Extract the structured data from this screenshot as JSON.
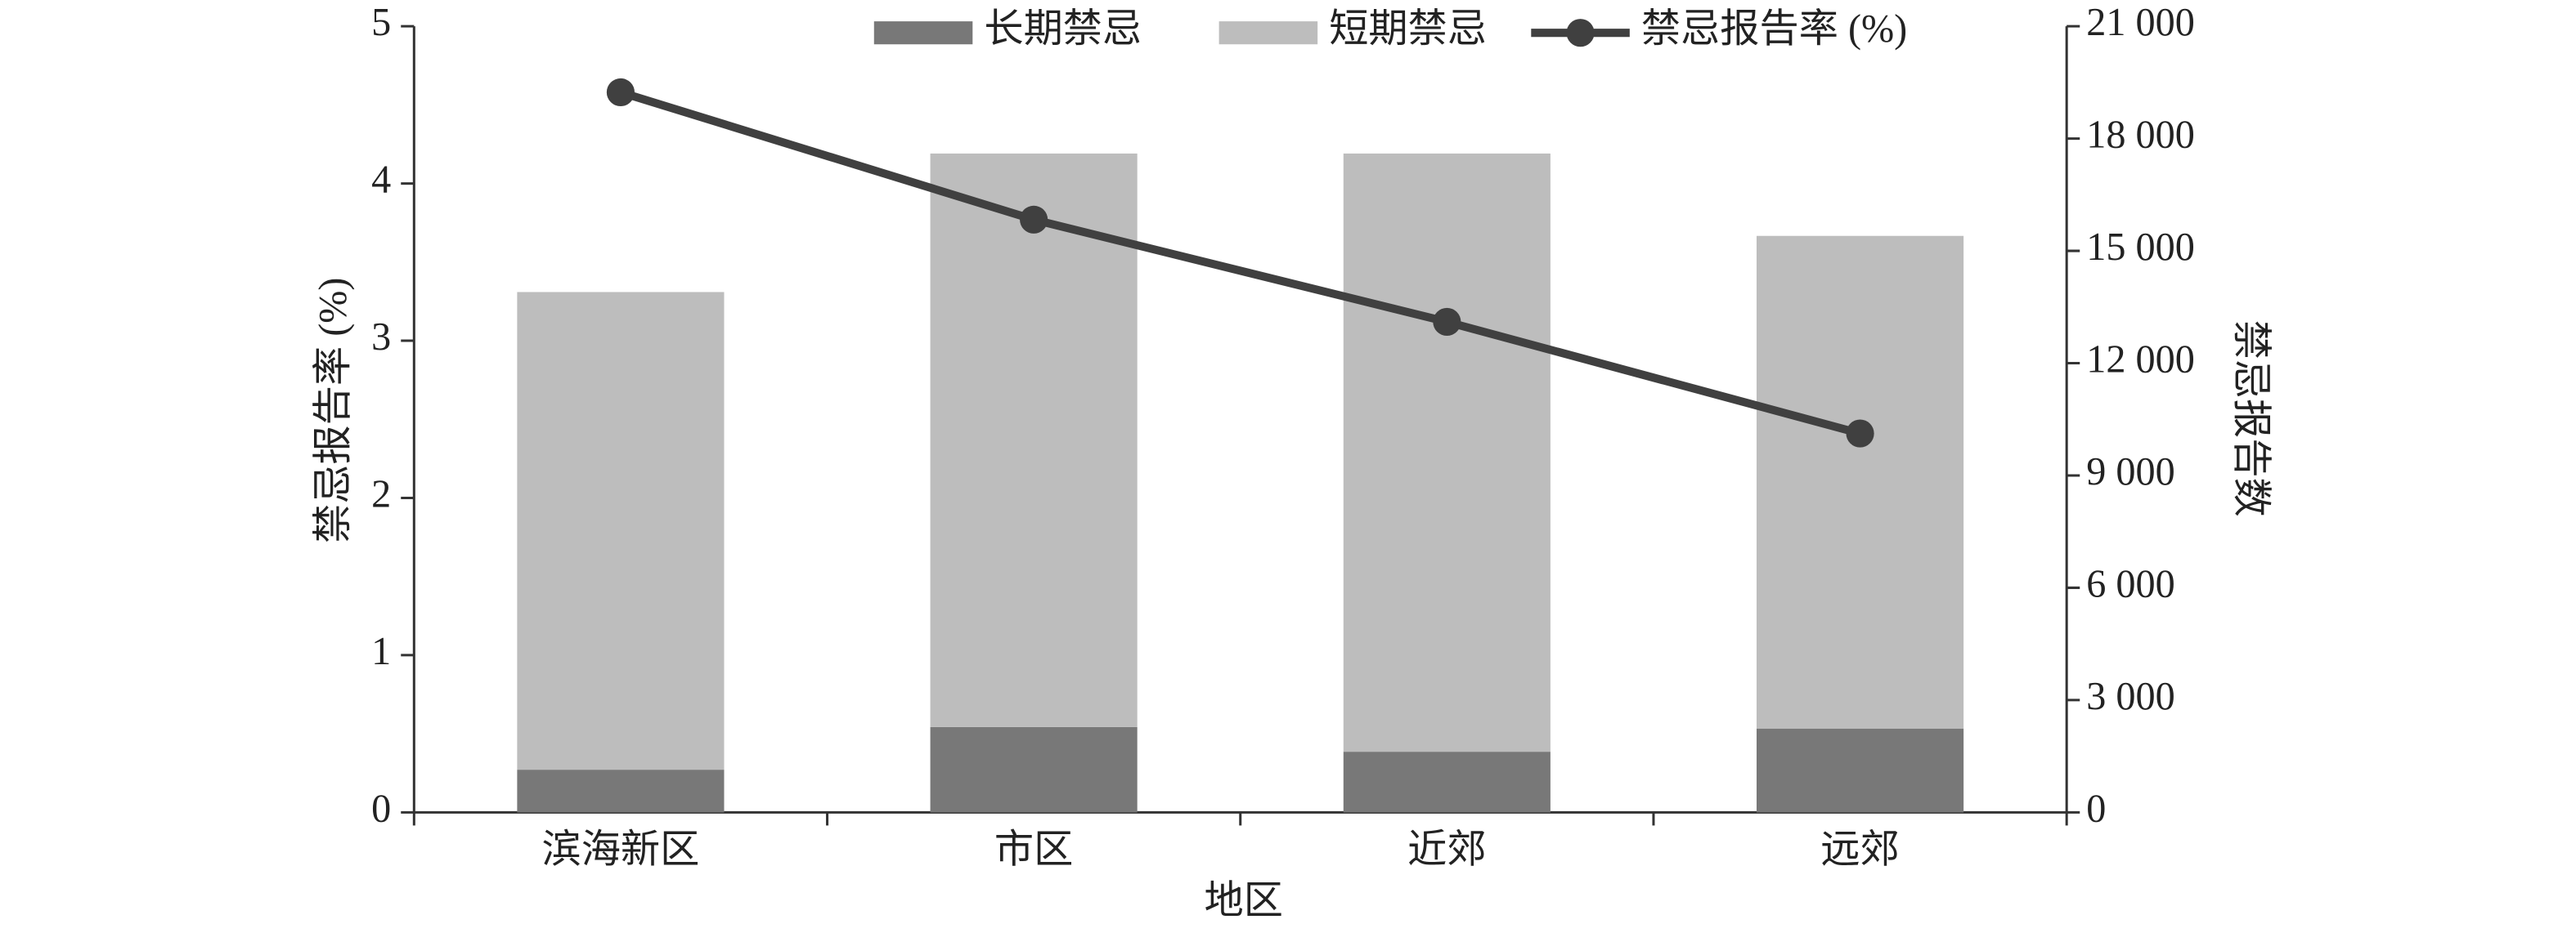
{
  "chart_data": {
    "type": "bar",
    "stacked": true,
    "x_label": "地区",
    "y_label": "禁忌报告率 (%)",
    "y2_label": "禁忌报告数",
    "categories": [
      "滨海新区",
      "市区",
      "近郊",
      "远郊"
    ],
    "series": [
      {
        "name": "长期禁忌",
        "color": "#787878",
        "axis": "y2",
        "values": [
          1140,
          2280,
          1620,
          2240
        ]
      },
      {
        "name": "短期禁忌",
        "color": "#bdbdbd",
        "axis": "y2",
        "values": [
          12760,
          15320,
          15980,
          13160
        ]
      },
      {
        "name": "禁忌报告率 (%)",
        "color": "#404040",
        "type": "line",
        "values": [
          4.58,
          3.77,
          3.12,
          2.41
        ]
      }
    ],
    "ylim": [
      0,
      5
    ],
    "yticks": [
      0,
      1,
      2,
      3,
      4,
      5
    ],
    "y2lim": [
      0,
      21000
    ],
    "y2ticks": [
      0,
      {
        "value": 3000,
        "label": "3 000"
      },
      {
        "value": 6000,
        "label": "6 000"
      },
      {
        "value": 9000,
        "label": "9 000"
      },
      {
        "value": 12000,
        "label": "12 000"
      },
      {
        "value": 15000,
        "label": "15 000"
      },
      {
        "value": 18000,
        "label": "18 000"
      },
      {
        "value": 21000,
        "label": "21 000"
      }
    ],
    "grid": false,
    "legend": "top"
  }
}
